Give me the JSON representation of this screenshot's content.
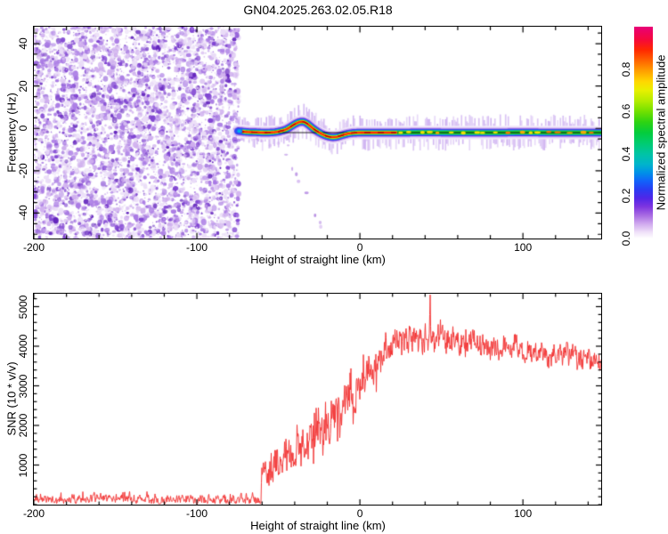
{
  "title": "GN04.2025.263.02.05.R18",
  "chart_data": [
    {
      "type": "heatmap",
      "name": "doppler-spectrogram",
      "xlabel": "Height of straight line (km)",
      "ylabel": "Frequency (Hz)",
      "xlim": [
        -200,
        148
      ],
      "ylim": [
        -52,
        48
      ],
      "xticks": [
        -200,
        -100,
        0,
        100
      ],
      "xtick_minor_step": 20,
      "yticks": [
        -40,
        -20,
        0,
        20,
        40
      ],
      "ytick_minor_step": 5,
      "noise_end_km": -74.3,
      "noise_palette": [
        "#e9dbf7",
        "#cfafee",
        "#a97ae4",
        "#8146d2",
        "#6426bd"
      ],
      "trace": {
        "points": [
          [
            -74.5,
            -1.2
          ],
          [
            -72,
            -1.5
          ],
          [
            -68,
            -1.8
          ],
          [
            -64,
            -1.8
          ],
          [
            -60,
            -2
          ],
          [
            -56,
            -2
          ],
          [
            -52,
            -1.8
          ],
          [
            -48,
            -1.2
          ],
          [
            -45,
            -0.5
          ],
          [
            -42,
            1
          ],
          [
            -39,
            2.5
          ],
          [
            -36,
            3.3
          ],
          [
            -34,
            3.2
          ],
          [
            -31,
            1.5
          ],
          [
            -29,
            0
          ],
          [
            -27,
            -1
          ],
          [
            -25,
            -2
          ],
          [
            -22,
            -3.2
          ],
          [
            -19,
            -4
          ],
          [
            -16,
            -4.3
          ],
          [
            -13,
            -3.8
          ],
          [
            -10,
            -3
          ],
          [
            -7,
            -2.4
          ],
          [
            -4,
            -2.1
          ],
          [
            0,
            -2
          ],
          [
            20,
            -2
          ],
          [
            40,
            -1.9
          ],
          [
            60,
            -2
          ],
          [
            80,
            -2
          ],
          [
            100,
            -1.9
          ],
          [
            120,
            -2
          ],
          [
            148,
            -2
          ]
        ],
        "red_core_end_km": 23,
        "reference_line_freq": -2,
        "band_layers": [
          [
            15,
            "#dfcaf5",
            0.45
          ],
          [
            11,
            "#bb93ea",
            0.75
          ],
          [
            8.5,
            "#6a34e0",
            1
          ],
          [
            7,
            "#2d4ef5",
            1
          ],
          [
            5.6,
            "#00b0e8",
            1
          ],
          [
            4.4,
            "#1ec832",
            1
          ]
        ],
        "core_layers": [
          [
            3.2,
            "#f0e800",
            1
          ],
          [
            2.4,
            "#ff9100",
            1
          ],
          [
            1.8,
            "#ff2600",
            1
          ]
        ],
        "blob_colors": [
          "#ffe400",
          "#ffaa00",
          "#ff7700"
        ]
      },
      "subtrace_points": [
        [
          -47,
          -10
        ],
        [
          -45,
          -13
        ],
        [
          -43,
          -16
        ],
        [
          -41,
          -19
        ],
        [
          -39,
          -22
        ],
        [
          -37,
          -25
        ],
        [
          -35,
          -28
        ],
        [
          -33,
          -31
        ],
        [
          -31,
          -34
        ],
        [
          -29,
          -38
        ],
        [
          -27,
          -41
        ],
        [
          -25,
          -44
        ],
        [
          -23.5,
          -47
        ]
      ],
      "scatter_points": [
        [
          -68,
          -6
        ],
        [
          -63,
          -5
        ],
        [
          -60,
          -6
        ],
        [
          -55,
          -8
        ],
        [
          -50,
          -7
        ],
        [
          -44,
          -8
        ]
      ],
      "colorbar": {
        "label": "Normalized spectral amplitude",
        "ticks": [
          0,
          0.2,
          0.4,
          0.6,
          0.8
        ],
        "range": [
          0,
          1
        ],
        "stops": [
          [
            0,
            "#ffffff"
          ],
          [
            0.03,
            "#efe0f8"
          ],
          [
            0.07,
            "#cfa8ee"
          ],
          [
            0.11,
            "#a76ae2"
          ],
          [
            0.15,
            "#7e35e0"
          ],
          [
            0.19,
            "#5026e8"
          ],
          [
            0.23,
            "#2b3bf2"
          ],
          [
            0.27,
            "#1261fa"
          ],
          [
            0.31,
            "#0090e8"
          ],
          [
            0.35,
            "#00b4cc"
          ],
          [
            0.4,
            "#00c4a4"
          ],
          [
            0.45,
            "#00cc70"
          ],
          [
            0.5,
            "#04cc3c"
          ],
          [
            0.55,
            "#2ed312"
          ],
          [
            0.6,
            "#72e000"
          ],
          [
            0.65,
            "#b4ec00"
          ],
          [
            0.7,
            "#e8f000"
          ],
          [
            0.74,
            "#ffd800"
          ],
          [
            0.79,
            "#ffa000"
          ],
          [
            0.84,
            "#ff6400"
          ],
          [
            0.89,
            "#ff2800"
          ],
          [
            0.94,
            "#f5083c"
          ],
          [
            1,
            "#e80078"
          ]
        ]
      }
    },
    {
      "type": "line",
      "name": "snr-profile",
      "xlabel": "Height of straight line (km)",
      "ylabel": "SNR (10 * v/v)",
      "xlim": [
        -200,
        148
      ],
      "ylim": [
        0,
        5326
      ],
      "xticks": [
        -200,
        -100,
        0,
        100
      ],
      "xtick_minor_step": 20,
      "yticks": [
        1000,
        2000,
        3000,
        4000,
        5000
      ],
      "ytick_minor_step": 200,
      "line_color": "#f23535",
      "signal_start_km": -60.5,
      "baseline": {
        "mean": 140,
        "amp": 170,
        "min": 25,
        "max": 330
      },
      "envelope": [
        [
          -200,
          140,
          70
        ],
        [
          -100,
          145,
          70
        ],
        [
          -62,
          155,
          80
        ],
        [
          -60,
          900,
          400
        ],
        [
          -55,
          900,
          480
        ],
        [
          -50,
          1050,
          500
        ],
        [
          -45,
          1150,
          520
        ],
        [
          -40,
          1300,
          550
        ],
        [
          -35,
          1400,
          560
        ],
        [
          -30,
          1600,
          600
        ],
        [
          -25,
          1800,
          620
        ],
        [
          -20,
          2050,
          650
        ],
        [
          -15,
          2300,
          660
        ],
        [
          -10,
          2550,
          680
        ],
        [
          -5,
          2800,
          670
        ],
        [
          0,
          3050,
          650
        ],
        [
          5,
          3300,
          630
        ],
        [
          10,
          3550,
          580
        ],
        [
          15,
          3800,
          530
        ],
        [
          20,
          4000,
          480
        ],
        [
          30,
          4150,
          430
        ],
        [
          40,
          4200,
          420
        ],
        [
          50,
          4180,
          400
        ],
        [
          60,
          4120,
          390
        ],
        [
          70,
          4060,
          370
        ],
        [
          80,
          4000,
          360
        ],
        [
          90,
          3950,
          350
        ],
        [
          100,
          3900,
          340
        ],
        [
          110,
          3840,
          340
        ],
        [
          120,
          3780,
          330
        ],
        [
          130,
          3730,
          320
        ],
        [
          140,
          3680,
          320
        ],
        [
          148,
          3600,
          310
        ]
      ],
      "peak": {
        "km": 43,
        "value": 5300
      }
    }
  ]
}
